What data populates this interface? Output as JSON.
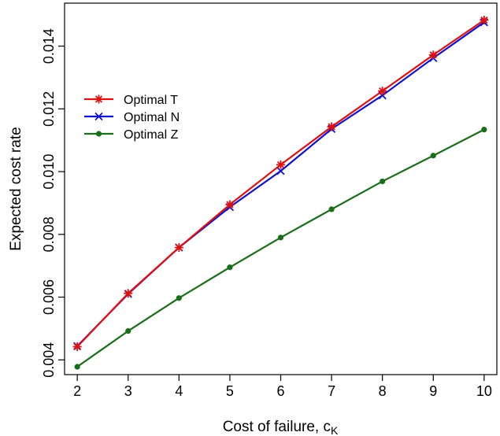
{
  "chart_data": {
    "type": "line",
    "xlabel": "Cost of failure, c",
    "xlabel_subscript": "K",
    "ylabel": "Expected cost rate",
    "x": [
      2,
      3,
      4,
      5,
      6,
      7,
      8,
      9,
      10
    ],
    "xlim": [
      1.75,
      10.25
    ],
    "ylim": [
      0.00353,
      0.01537
    ],
    "x_ticks": [
      "2",
      "3",
      "4",
      "5",
      "6",
      "7",
      "8",
      "9",
      "10"
    ],
    "y_ticks": [
      "0.004",
      "0.006",
      "0.008",
      "0.010",
      "0.012",
      "0.014"
    ],
    "y_tick_values": [
      0.004,
      0.006,
      0.008,
      0.01,
      0.012,
      0.014
    ],
    "grid": false,
    "legend_position": "upper-left",
    "series": [
      {
        "name": "Optimal T",
        "color": "#dd1111",
        "marker": "asterisk",
        "values": [
          0.00442,
          0.00612,
          0.00758,
          0.00895,
          0.01022,
          0.01143,
          0.01257,
          0.01372,
          0.01483
        ]
      },
      {
        "name": "Optimal N",
        "color": "#1111cc",
        "marker": "cross",
        "values": [
          0.00444,
          0.0061,
          0.00758,
          0.00887,
          0.01002,
          0.01136,
          0.01243,
          0.01362,
          0.01476
        ]
      },
      {
        "name": "Optimal Z",
        "color": "#1a6e1a",
        "marker": "dot",
        "values": [
          0.00378,
          0.00492,
          0.00597,
          0.00695,
          0.0079,
          0.0088,
          0.00969,
          0.01051,
          0.01134
        ]
      }
    ]
  }
}
